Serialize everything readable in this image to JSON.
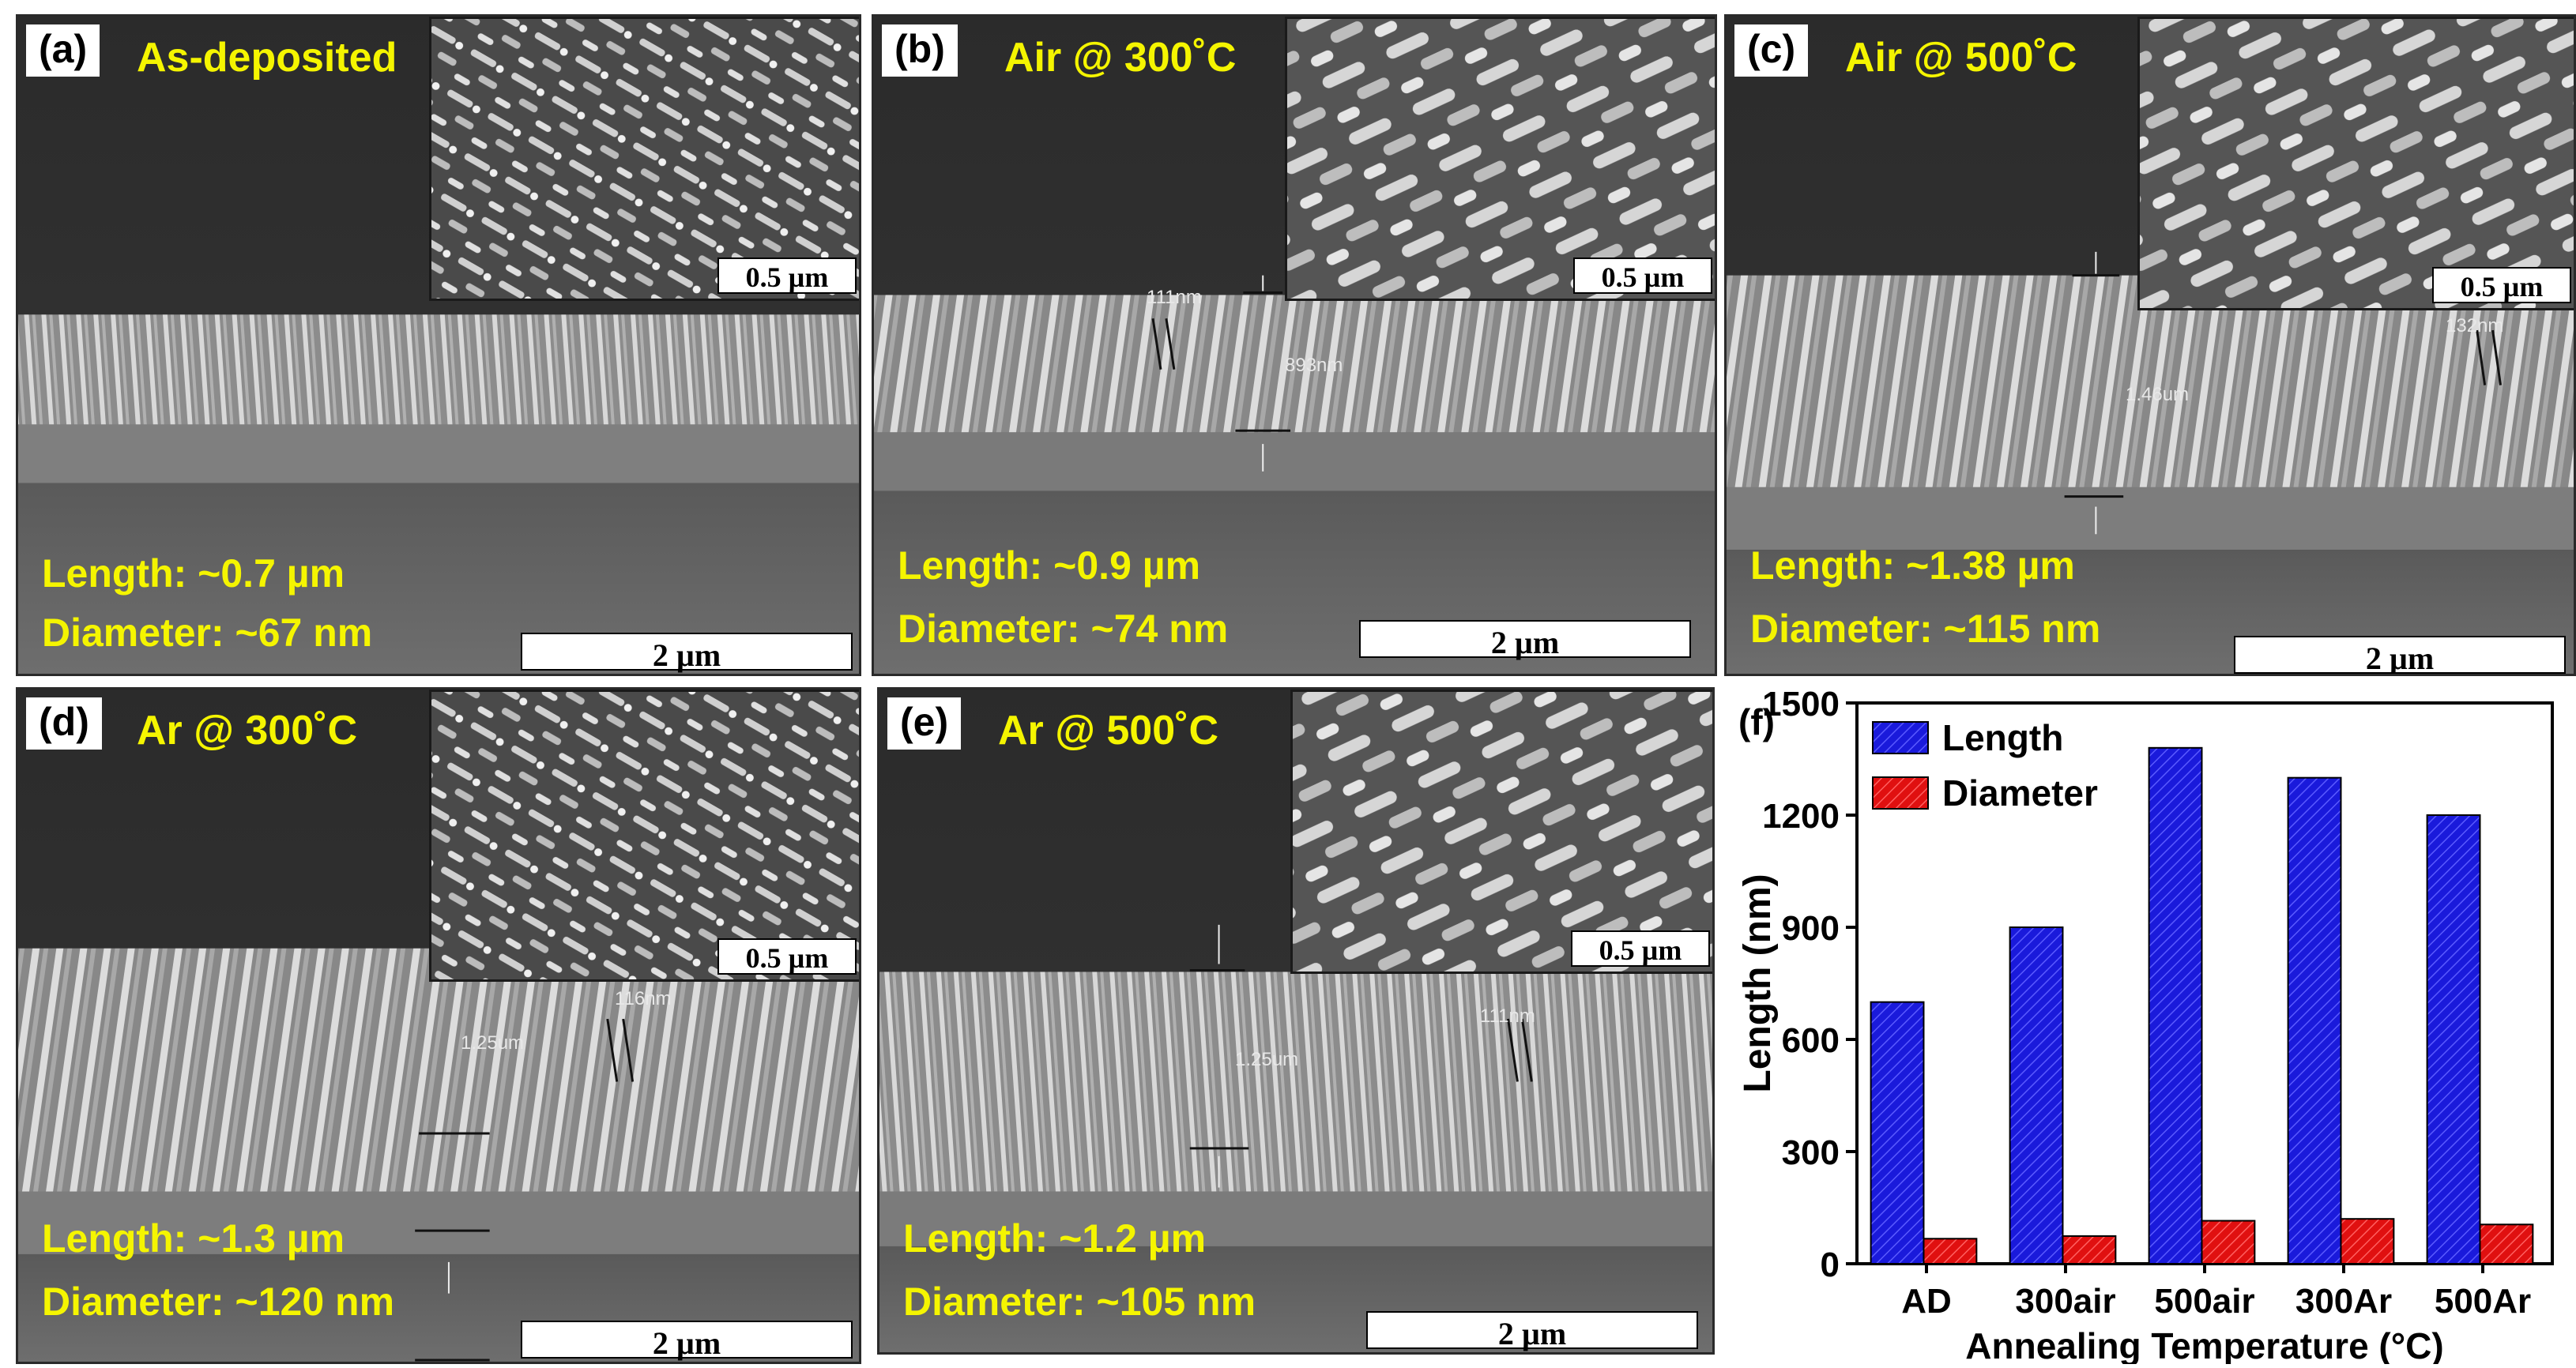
{
  "panels": [
    {
      "label": "(a)",
      "condition": "As-deposited",
      "inset_scale": "0.5 µm",
      "length": "Length: ~0.7 µm",
      "diameter": "Diameter: ~67 nm",
      "scale": "2 µm",
      "measurements": []
    },
    {
      "label": "(b)",
      "condition": "Air @ 300˚C",
      "inset_scale": "0.5 µm",
      "length": "Length: ~0.9 µm",
      "diameter": "Diameter: ~74 nm",
      "scale": "2 µm",
      "measurements": [
        "111nm",
        "893nm"
      ]
    },
    {
      "label": "(c)",
      "condition": "Air @ 500˚C",
      "inset_scale": "0.5 µm",
      "length": "Length: ~1.38 µm",
      "diameter": "Diameter: ~115 nm",
      "scale": "2 µm",
      "measurements": [
        "132nm",
        "1.46um"
      ]
    },
    {
      "label": "(d)",
      "condition": "Ar @ 300˚C",
      "inset_scale": "0.5 µm",
      "length": "Length: ~1.3 µm",
      "diameter": "Diameter: ~120 nm",
      "scale": "2 µm",
      "measurements": [
        "116nm",
        "1.25um"
      ]
    },
    {
      "label": "(e)",
      "condition": "Ar @ 500˚C",
      "inset_scale": "0.5 µm",
      "length": "Length: ~1.2 µm",
      "diameter": "Diameter: ~105 nm",
      "scale": "2 µm",
      "measurements": [
        "111nm",
        "1.25um"
      ]
    }
  ],
  "chart_data": {
    "type": "bar",
    "panel_label": "(f)",
    "categories": [
      "AD",
      "300air",
      "500air",
      "300Ar",
      "500Ar"
    ],
    "series": [
      {
        "name": "Length",
        "values": [
          700,
          900,
          1380,
          1300,
          1200
        ],
        "color": "#1a1adb"
      },
      {
        "name": "Diameter",
        "values": [
          67,
          74,
          115,
          120,
          105
        ],
        "color": "#e01010"
      }
    ],
    "xlabel": "Annealing Temperature (°C)",
    "ylabel": "Length (nm)",
    "ylim": [
      0,
      1500
    ],
    "yticks": [
      0,
      300,
      600,
      900,
      1200,
      1500
    ],
    "legend_position": "top-left"
  }
}
